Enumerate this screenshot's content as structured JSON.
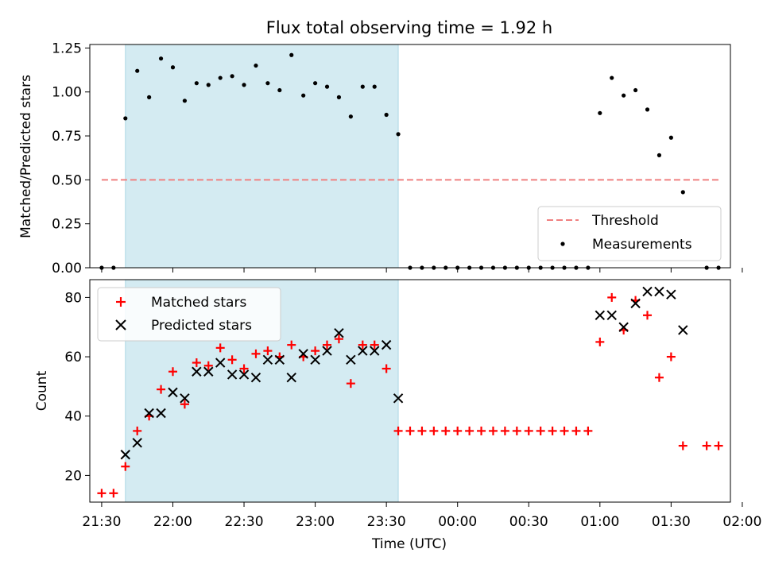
{
  "chart_data": {
    "type": "scatter",
    "title": "Flux total observing time = 1.92 h",
    "xlabel": "Time (UTC)",
    "x_tick_labels": [
      "21:30",
      "22:00",
      "22:30",
      "23:00",
      "23:30",
      "00:00",
      "00:30",
      "01:00",
      "01:30",
      "02:00"
    ],
    "x_range_minutes": [
      -5,
      265
    ],
    "observing_window_minutes": [
      10,
      125
    ],
    "colors": {
      "shade": "#add8e6",
      "threshold": "#f08080",
      "measurements": "#000000",
      "matched": "#ff0000",
      "predicted": "#000000"
    },
    "top": {
      "ylabel": "Matched/Predicted stars",
      "ylim": [
        0,
        1.27
      ],
      "y_ticks": [
        "0.00",
        "0.25",
        "0.50",
        "0.75",
        "1.00",
        "1.25"
      ],
      "threshold": {
        "name": "Threshold",
        "y": 0.5,
        "x_from": 0,
        "x_to": 260
      },
      "legend": [
        "Threshold",
        "Measurements"
      ],
      "measurements": {
        "name": "Measurements",
        "x": [
          0,
          5,
          10,
          15,
          20,
          25,
          30,
          35,
          40,
          45,
          50,
          55,
          60,
          65,
          70,
          75,
          80,
          85,
          90,
          95,
          100,
          105,
          110,
          115,
          120,
          125,
          130,
          135,
          140,
          145,
          150,
          155,
          160,
          165,
          170,
          175,
          180,
          185,
          190,
          195,
          200,
          205,
          210,
          215,
          220,
          225,
          230,
          235,
          240,
          245,
          250,
          255,
          260
        ],
        "y": [
          0,
          0,
          0.85,
          1.12,
          0.97,
          1.19,
          1.14,
          0.95,
          1.05,
          1.04,
          1.08,
          1.09,
          1.04,
          1.15,
          1.05,
          1.01,
          1.21,
          0.98,
          1.05,
          1.03,
          0.97,
          0.86,
          1.03,
          1.03,
          0.87,
          0.76,
          0,
          0,
          0,
          0,
          0,
          0,
          0,
          0,
          0,
          0,
          0,
          0,
          0,
          0,
          0,
          0,
          0.88,
          1.08,
          0.98,
          1.01,
          0.9,
          0.64,
          0.74,
          0.43,
          null,
          0,
          0
        ]
      }
    },
    "bottom": {
      "ylabel": "Count",
      "ylim": [
        11,
        86
      ],
      "y_ticks": [
        20,
        40,
        60,
        80
      ],
      "legend": [
        "Matched stars",
        "Predicted stars"
      ],
      "series": [
        {
          "name": "Matched stars",
          "marker": "+",
          "x": [
            0,
            5,
            10,
            15,
            20,
            25,
            30,
            35,
            40,
            45,
            50,
            55,
            60,
            65,
            70,
            75,
            80,
            85,
            90,
            95,
            100,
            105,
            110,
            115,
            120,
            125,
            130,
            135,
            140,
            145,
            150,
            155,
            160,
            165,
            170,
            175,
            180,
            185,
            190,
            195,
            200,
            205,
            210,
            215,
            220,
            225,
            230,
            235,
            240,
            245,
            250,
            255,
            260
          ],
          "y": [
            14,
            14,
            23,
            35,
            40,
            49,
            55,
            44,
            58,
            57,
            63,
            59,
            56,
            61,
            62,
            60,
            64,
            60,
            62,
            64,
            66,
            51,
            64,
            64,
            56,
            35,
            35,
            35,
            35,
            35,
            35,
            35,
            35,
            35,
            35,
            35,
            35,
            35,
            35,
            35,
            35,
            35,
            65,
            80,
            69,
            79,
            74,
            53,
            60,
            30,
            null,
            30,
            30
          ]
        },
        {
          "name": "Predicted stars",
          "marker": "x",
          "x": [
            10,
            15,
            20,
            25,
            30,
            35,
            40,
            45,
            50,
            55,
            60,
            65,
            70,
            75,
            80,
            85,
            90,
            95,
            100,
            105,
            110,
            115,
            120,
            125,
            210,
            215,
            220,
            225,
            230,
            235,
            240,
            245
          ],
          "y": [
            27,
            31,
            41,
            41,
            48,
            46,
            55,
            55,
            58,
            54,
            54,
            53,
            59,
            59,
            53,
            61,
            59,
            62,
            68,
            59,
            62,
            62,
            64,
            46,
            74,
            74,
            70,
            78,
            82,
            82,
            81,
            69
          ]
        }
      ]
    }
  }
}
